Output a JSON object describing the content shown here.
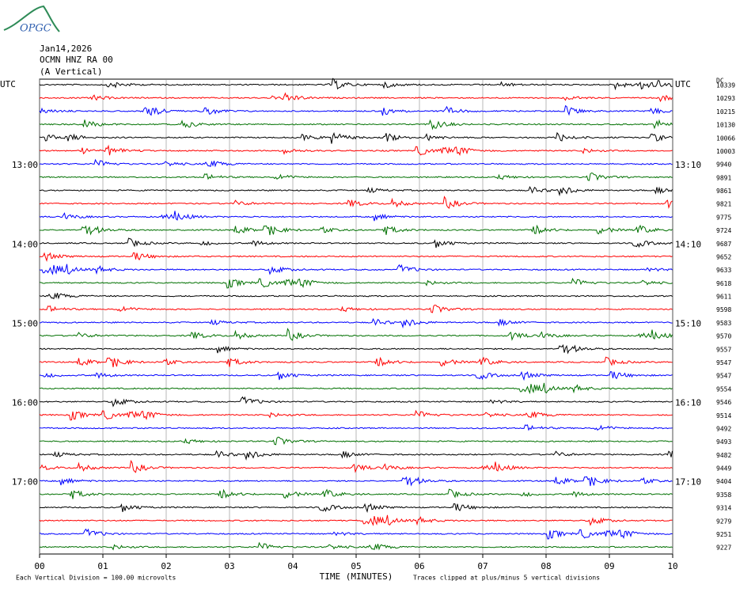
{
  "header": {
    "logo": "OPGC",
    "date": "Jan14,2026",
    "station": "OCMN HNZ RA 00",
    "component": "(A Vertical)",
    "dc": "DC"
  },
  "left_labels": [
    "UTC",
    "13:00",
    "14:00",
    "15:00",
    "16:00",
    "17:00"
  ],
  "right_labels": [
    "UTC",
    "13:10",
    "14:10",
    "15:10",
    "16:10",
    "17:10"
  ],
  "trace_levels": [
    10339,
    10293,
    10215,
    10130,
    10066,
    10003,
    9940,
    9891,
    9861,
    9821,
    9775,
    9724,
    9687,
    9652,
    9633,
    9618,
    9611,
    9598,
    9583,
    9570,
    9557,
    9547,
    9547,
    9554,
    9546,
    9514,
    9492,
    9493,
    9482,
    9449,
    9404,
    9358,
    9314,
    9279,
    9251,
    9227
  ],
  "trace_colors": [
    "#000000",
    "#ff0000",
    "#0000ff",
    "#007000"
  ],
  "x_axis": {
    "title": "TIME (MINUTES)",
    "ticks": [
      "00",
      "01",
      "02",
      "03",
      "04",
      "05",
      "06",
      "07",
      "08",
      "09",
      "10"
    ]
  },
  "footer": {
    "scale": "Each Vertical Division =  100.00 microvolts",
    "clip": "Traces clipped at plus/minus 5 vertical divisions"
  }
}
